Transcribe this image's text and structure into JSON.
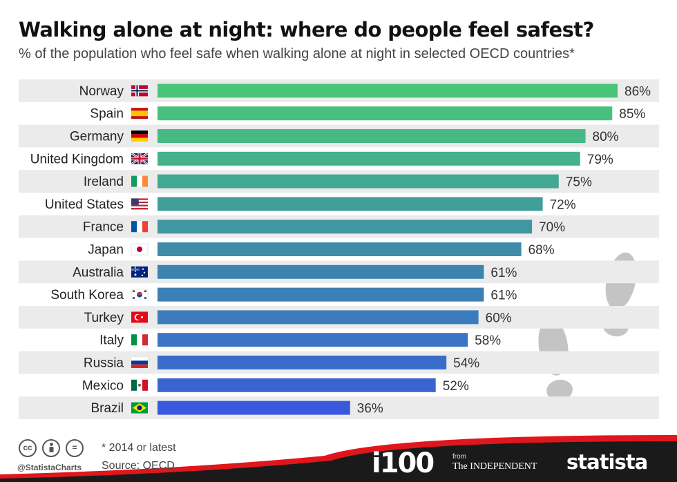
{
  "header": {
    "title": "Walking alone at night: where do people feel safest?",
    "subtitle": "% of the population who feel safe when walking alone at night in selected OECD countries*"
  },
  "chart_data": {
    "type": "bar",
    "orientation": "horizontal",
    "categories": [
      "Norway",
      "Spain",
      "Germany",
      "United Kingdom",
      "Ireland",
      "United States",
      "France",
      "Japan",
      "Australia",
      "South Korea",
      "Turkey",
      "Italy",
      "Russia",
      "Mexico",
      "Brazil"
    ],
    "values": [
      86,
      85,
      80,
      79,
      75,
      72,
      70,
      68,
      61,
      61,
      60,
      58,
      54,
      52,
      36
    ],
    "value_labels": [
      "86%",
      "85%",
      "80%",
      "79%",
      "75%",
      "72%",
      "70%",
      "68%",
      "61%",
      "61%",
      "60%",
      "58%",
      "54%",
      "52%",
      "36%"
    ],
    "flag_icons": [
      "norway-flag-icon",
      "spain-flag-icon",
      "germany-flag-icon",
      "united-kingdom-flag-icon",
      "ireland-flag-icon",
      "united-states-flag-icon",
      "france-flag-icon",
      "japan-flag-icon",
      "australia-flag-icon",
      "south-korea-flag-icon",
      "turkey-flag-icon",
      "italy-flag-icon",
      "russia-flag-icon",
      "mexico-flag-icon",
      "brazil-flag-icon"
    ],
    "xlim": [
      0,
      86
    ],
    "colors": [
      "#49c57a",
      "#48c07e",
      "#46b985",
      "#45b28b",
      "#43a891",
      "#419e99",
      "#4096a1",
      "#3e8ca9",
      "#3d83b0",
      "#3d80b6",
      "#3c7cbc",
      "#3b74c4",
      "#3a6cca",
      "#3a64d0",
      "#3a58db"
    ],
    "row_stripe_color": "#ebebeb",
    "grid": false,
    "legend": "none"
  },
  "footer": {
    "note": "* 2014 or latest",
    "source": "Source: OECD",
    "handle": "@StatistaCharts",
    "license_icons": [
      "cc-icon",
      "by-icon",
      "nd-icon"
    ],
    "cc_text": "cc",
    "nd_text": "=",
    "brand_i100": "i100",
    "brand_from": "from",
    "brand_independent": "The INDEPENDENT",
    "brand_statista": "statista",
    "footer_color": "#1a1a1a",
    "accent_color": "#e0161d"
  },
  "decoration": {
    "icon": "footprints-icon"
  }
}
